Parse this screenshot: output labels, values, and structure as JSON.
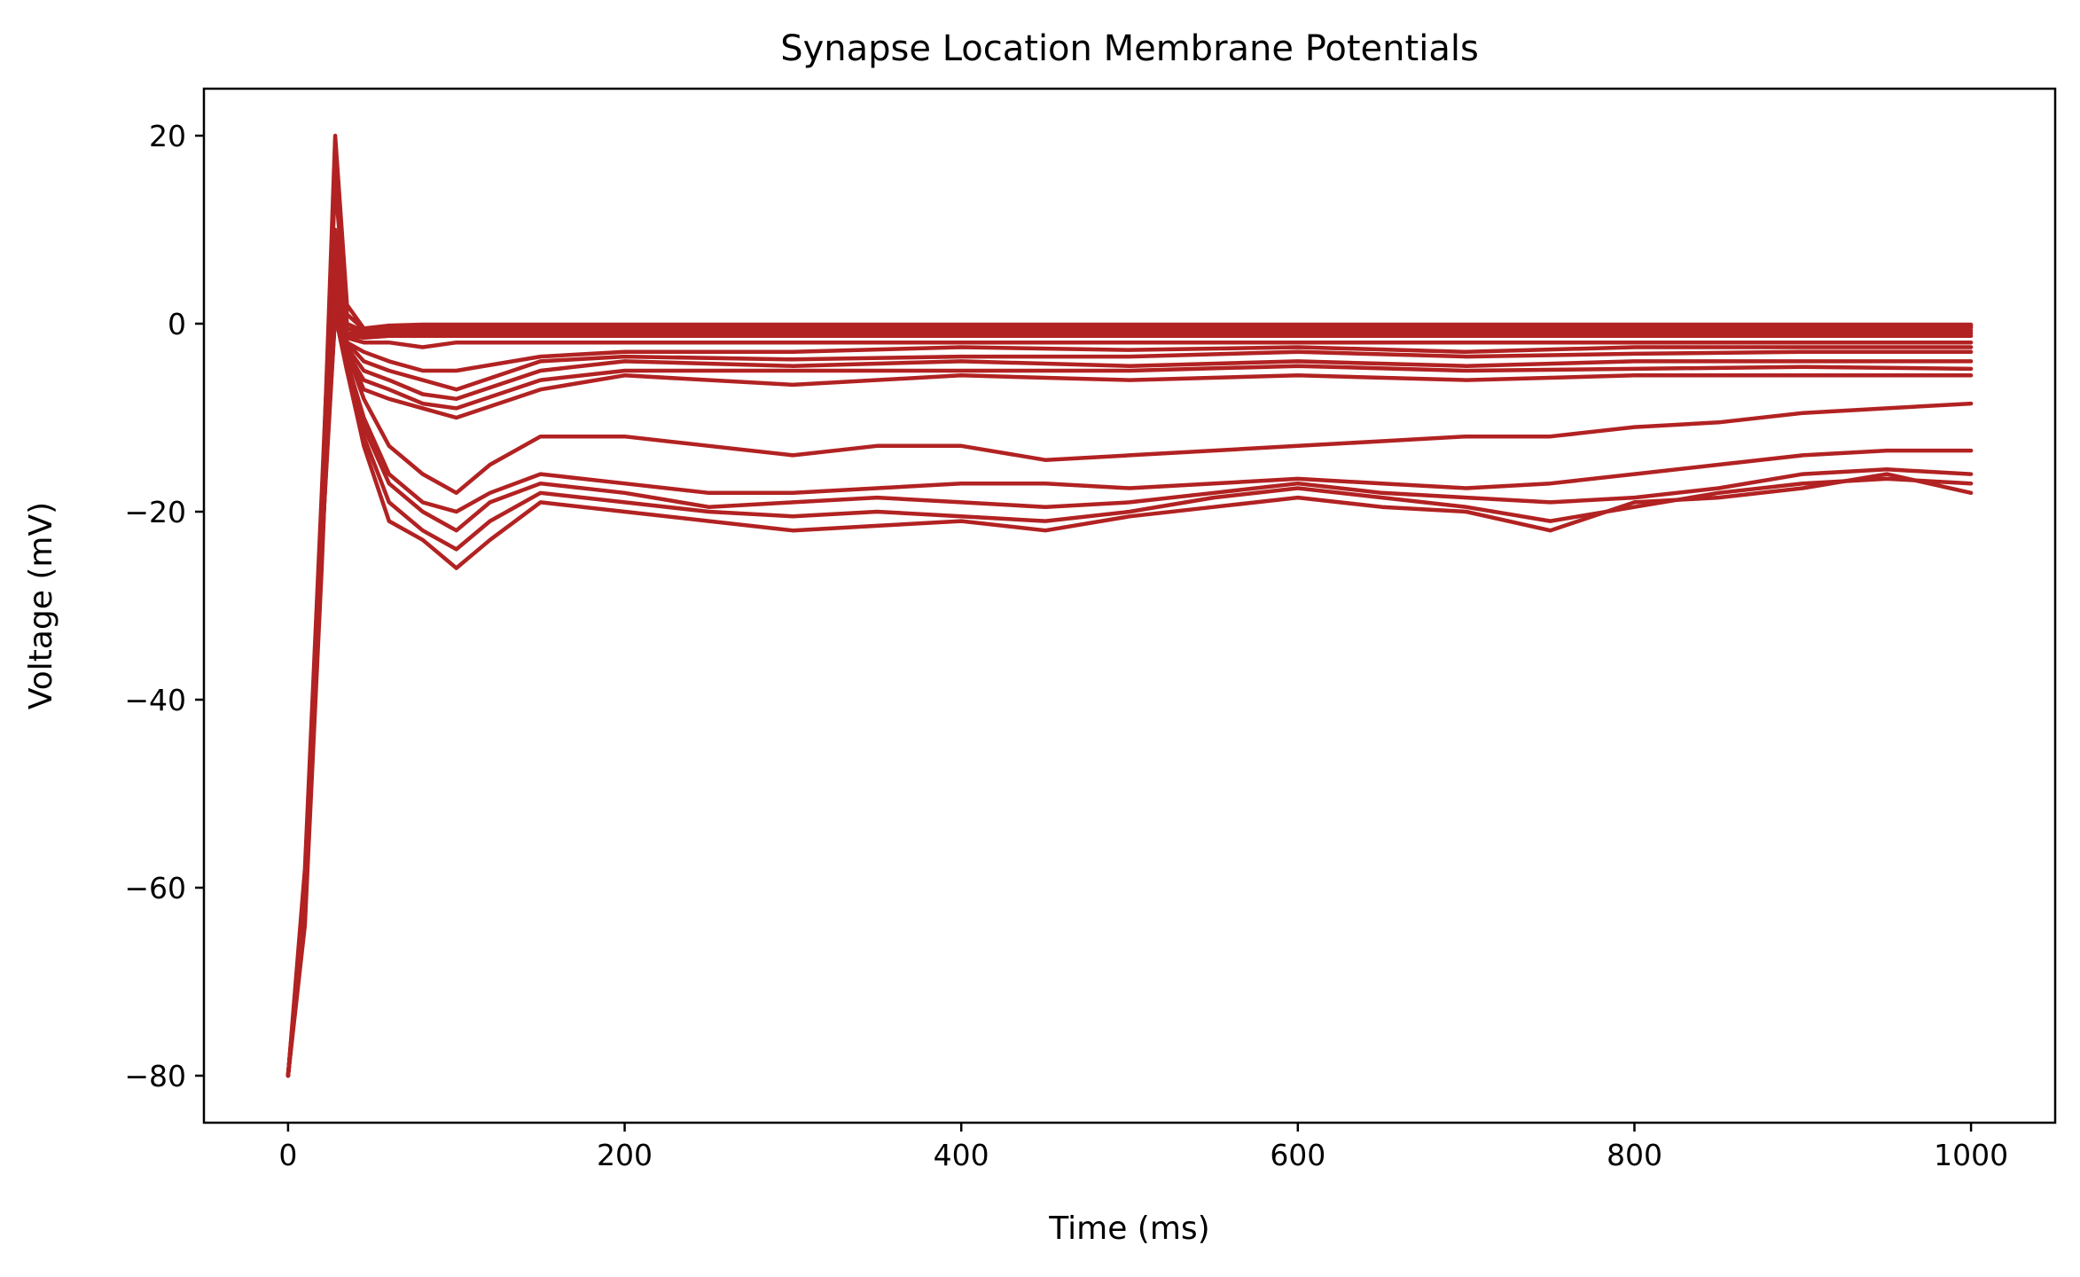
{
  "chart_data": {
    "type": "line",
    "title": "Synapse Location Membrane Potentials",
    "xlabel": "Time (ms)",
    "ylabel": "Voltage (mV)",
    "xlim": [
      -50,
      1050
    ],
    "ylim": [
      -85,
      25
    ],
    "xticks": [
      0,
      200,
      400,
      600,
      800,
      1000
    ],
    "yticks": [
      -80,
      -60,
      -40,
      -20,
      0,
      20
    ],
    "xtick_labels": [
      "0",
      "200",
      "400",
      "600",
      "800",
      "1000"
    ],
    "ytick_labels": [
      "−80",
      "−60",
      "−40",
      "−20",
      "0",
      "20"
    ],
    "grid": false,
    "legend": "none",
    "line_color": "#b22222",
    "series": [
      {
        "x": [
          0,
          10,
          20,
          28,
          35,
          45,
          60,
          80,
          100,
          150,
          200,
          300,
          400,
          500,
          600,
          700,
          800,
          900,
          1000
        ],
        "y": [
          -80,
          -60,
          -20,
          20,
          2,
          -0.5,
          -0.2,
          -0.1,
          -0.1,
          -0.1,
          -0.1,
          -0.1,
          -0.1,
          -0.1,
          -0.1,
          -0.1,
          -0.1,
          -0.1,
          -0.1
        ]
      },
      {
        "x": [
          0,
          10,
          20,
          28,
          35,
          45,
          60,
          80,
          100,
          150,
          200,
          300,
          400,
          500,
          600,
          700,
          800,
          900,
          1000
        ],
        "y": [
          -80,
          -62,
          -24,
          18,
          1,
          -0.6,
          -0.3,
          -0.2,
          -0.2,
          -0.2,
          -0.2,
          -0.2,
          -0.2,
          -0.2,
          -0.2,
          -0.2,
          -0.2,
          -0.2,
          -0.2
        ]
      },
      {
        "x": [
          0,
          10,
          20,
          28,
          35,
          45,
          60,
          80,
          100,
          150,
          200,
          300,
          400,
          500,
          600,
          700,
          800,
          900,
          1000
        ],
        "y": [
          -80,
          -58,
          -18,
          15,
          0,
          -0.8,
          -0.5,
          -0.4,
          -0.4,
          -0.4,
          -0.4,
          -0.4,
          -0.4,
          -0.4,
          -0.4,
          -0.4,
          -0.4,
          -0.4,
          -0.4
        ]
      },
      {
        "x": [
          0,
          10,
          20,
          28,
          35,
          45,
          60,
          80,
          100,
          150,
          200,
          300,
          400,
          500,
          600,
          700,
          800,
          900,
          1000
        ],
        "y": [
          -80,
          -64,
          -26,
          10,
          -0.5,
          -1,
          -0.8,
          -0.7,
          -0.7,
          -0.7,
          -0.7,
          -0.7,
          -0.7,
          -0.7,
          -0.7,
          -0.7,
          -0.7,
          -0.7,
          -0.7
        ]
      },
      {
        "x": [
          0,
          10,
          20,
          28,
          35,
          45,
          60,
          80,
          100,
          150,
          200,
          300,
          400,
          500,
          600,
          700,
          800,
          900,
          1000
        ],
        "y": [
          -80,
          -60,
          -22,
          8,
          -1,
          -1.2,
          -1,
          -1,
          -1,
          -1,
          -1,
          -1,
          -1,
          -1,
          -1,
          -1,
          -1,
          -1,
          -1
        ]
      },
      {
        "x": [
          0,
          10,
          20,
          28,
          35,
          45,
          60,
          80,
          100,
          150,
          200,
          300,
          400,
          500,
          600,
          700,
          800,
          900,
          1000
        ],
        "y": [
          -80,
          -61,
          -23,
          6,
          -1.2,
          -1.5,
          -1.3,
          -1.3,
          -1.3,
          -1.3,
          -1.3,
          -1.3,
          -1.3,
          -1.3,
          -1.3,
          -1.3,
          -1.3,
          -1.3,
          -1.3
        ]
      },
      {
        "x": [
          0,
          10,
          20,
          28,
          35,
          45,
          60,
          80,
          100,
          150,
          200,
          300,
          400,
          500,
          600,
          700,
          800,
          900,
          1000
        ],
        "y": [
          -80,
          -63,
          -25,
          5,
          -1.5,
          -2,
          -2,
          -2.5,
          -2,
          -2,
          -2,
          -2,
          -2,
          -2,
          -2,
          -2,
          -2,
          -2,
          -2
        ]
      },
      {
        "x": [
          0,
          10,
          20,
          28,
          35,
          45,
          60,
          80,
          100,
          150,
          200,
          300,
          400,
          500,
          600,
          700,
          800,
          900,
          1000
        ],
        "y": [
          -80,
          -59,
          -20,
          4,
          -2,
          -3,
          -4,
          -5,
          -5,
          -3.5,
          -3,
          -3,
          -2.5,
          -2.8,
          -2.5,
          -3,
          -2.5,
          -2.5,
          -2.5
        ]
      },
      {
        "x": [
          0,
          10,
          20,
          28,
          35,
          45,
          60,
          80,
          100,
          150,
          200,
          300,
          400,
          500,
          600,
          700,
          800,
          900,
          1000
        ],
        "y": [
          -80,
          -62,
          -24,
          3,
          -2,
          -4,
          -5,
          -6,
          -7,
          -4,
          -3.5,
          -3.8,
          -3.5,
          -3.5,
          -3,
          -3.5,
          -3.2,
          -3,
          -3
        ]
      },
      {
        "x": [
          0,
          10,
          20,
          28,
          35,
          45,
          60,
          80,
          100,
          150,
          200,
          300,
          400,
          500,
          600,
          700,
          800,
          900,
          1000
        ],
        "y": [
          -80,
          -60,
          -21,
          3,
          -2.5,
          -5,
          -6,
          -7.5,
          -8,
          -5,
          -4,
          -4.5,
          -4,
          -4.5,
          -4,
          -4.5,
          -4,
          -4,
          -4
        ]
      },
      {
        "x": [
          0,
          10,
          20,
          28,
          35,
          45,
          60,
          80,
          100,
          150,
          200,
          300,
          400,
          500,
          600,
          700,
          800,
          900,
          1000
        ],
        "y": [
          -80,
          -61,
          -23,
          2,
          -3,
          -6,
          -7,
          -8.5,
          -9,
          -6,
          -5,
          -5,
          -5,
          -5,
          -4.5,
          -5,
          -4.8,
          -4.6,
          -4.8
        ]
      },
      {
        "x": [
          0,
          10,
          20,
          28,
          35,
          45,
          60,
          80,
          100,
          150,
          200,
          300,
          400,
          500,
          600,
          700,
          800,
          900,
          1000
        ],
        "y": [
          -80,
          -62,
          -24,
          2,
          -3,
          -7,
          -8,
          -9,
          -10,
          -7,
          -5.5,
          -6.5,
          -5.5,
          -6,
          -5.5,
          -6,
          -5.5,
          -5.5,
          -5.5
        ]
      },
      {
        "x": [
          0,
          10,
          20,
          28,
          35,
          45,
          60,
          80,
          100,
          120,
          150,
          200,
          250,
          300,
          350,
          400,
          450,
          500,
          550,
          600,
          650,
          700,
          750,
          800,
          850,
          900,
          950,
          1000
        ],
        "y": [
          -80,
          -60,
          -20,
          2,
          -3,
          -8,
          -13,
          -16,
          -18,
          -15,
          -12,
          -12,
          -13,
          -14,
          -13,
          -13,
          -14.5,
          -14,
          -13.5,
          -13,
          -12.5,
          -12,
          -12,
          -11,
          -10.5,
          -9.5,
          -9,
          -8.5
        ]
      },
      {
        "x": [
          0,
          10,
          20,
          28,
          35,
          45,
          60,
          80,
          100,
          120,
          150,
          200,
          250,
          300,
          350,
          400,
          450,
          500,
          550,
          600,
          650,
          700,
          750,
          800,
          850,
          900,
          950,
          1000
        ],
        "y": [
          -80,
          -61,
          -22,
          1,
          -4,
          -10,
          -16,
          -19,
          -20,
          -18,
          -16,
          -17,
          -18,
          -18,
          -17.5,
          -17,
          -17,
          -17.5,
          -17,
          -16.5,
          -17,
          -17.5,
          -17,
          -16,
          -15,
          -14,
          -13.5,
          -13.5
        ]
      },
      {
        "x": [
          0,
          10,
          20,
          28,
          35,
          45,
          60,
          80,
          100,
          120,
          150,
          200,
          250,
          300,
          350,
          400,
          450,
          500,
          550,
          600,
          650,
          700,
          750,
          800,
          850,
          900,
          950,
          1000
        ],
        "y": [
          -80,
          -62,
          -24,
          1,
          -4,
          -11,
          -17,
          -20,
          -22,
          -19,
          -17,
          -18,
          -19.5,
          -19,
          -18.5,
          -19,
          -19.5,
          -19,
          -18,
          -17,
          -18,
          -18.5,
          -19,
          -18.5,
          -17.5,
          -16,
          -15.5,
          -16
        ]
      },
      {
        "x": [
          0,
          10,
          20,
          28,
          35,
          45,
          60,
          80,
          100,
          120,
          150,
          200,
          250,
          300,
          350,
          400,
          450,
          500,
          550,
          600,
          650,
          700,
          750,
          800,
          850,
          900,
          950,
          1000
        ],
        "y": [
          -80,
          -60,
          -21,
          1,
          -5,
          -12,
          -19,
          -22,
          -24,
          -21,
          -18,
          -19,
          -20,
          -20.5,
          -20,
          -20.5,
          -21,
          -20,
          -18.5,
          -17.5,
          -18.5,
          -19.5,
          -21,
          -19.5,
          -18,
          -17,
          -16.5,
          -17
        ]
      },
      {
        "x": [
          0,
          10,
          20,
          28,
          35,
          45,
          60,
          80,
          100,
          120,
          150,
          200,
          250,
          300,
          350,
          400,
          450,
          500,
          550,
          600,
          650,
          700,
          750,
          800,
          850,
          900,
          950,
          1000
        ],
        "y": [
          -80,
          -61,
          -23,
          1,
          -5,
          -13,
          -21,
          -23,
          -26,
          -23,
          -19,
          -20,
          -21,
          -22,
          -21.5,
          -21,
          -22,
          -20.5,
          -19.5,
          -18.5,
          -19.5,
          -20,
          -22,
          -19,
          -18.5,
          -17.5,
          -16,
          -18
        ]
      }
    ]
  }
}
